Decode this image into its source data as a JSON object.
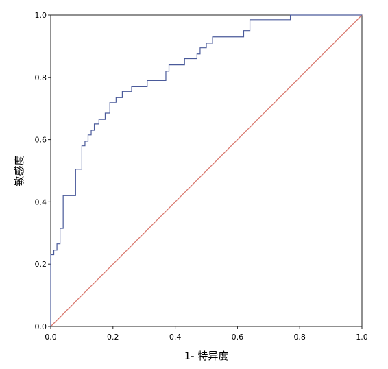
{
  "chart_data": {
    "type": "line",
    "title": "",
    "xlabel": "1- 特异度",
    "ylabel": "敏感度",
    "xlim": [
      0,
      1
    ],
    "ylim": [
      0,
      1
    ],
    "xticks": [
      "0.0",
      "0.2",
      "0.4",
      "0.6",
      "0.8",
      "1.0"
    ],
    "yticks": [
      "0.0",
      "0.2",
      "0.4",
      "0.6",
      "0.8",
      "1.0"
    ],
    "grid": false,
    "colors": {
      "roc": "#4a5a9a",
      "reference": "#d9786e"
    },
    "series": [
      {
        "kind": "step",
        "x": [
          0.0,
          0.0,
          0.01,
          0.01,
          0.02,
          0.02,
          0.03,
          0.03,
          0.04,
          0.04,
          0.08,
          0.08,
          0.1,
          0.1,
          0.11,
          0.11,
          0.12,
          0.12,
          0.13,
          0.13,
          0.14,
          0.14,
          0.155,
          0.155,
          0.175,
          0.175,
          0.19,
          0.19,
          0.21,
          0.21,
          0.23,
          0.23,
          0.26,
          0.26,
          0.31,
          0.31,
          0.37,
          0.37,
          0.38,
          0.38,
          0.43,
          0.43,
          0.47,
          0.47,
          0.48,
          0.48,
          0.5,
          0.5,
          0.52,
          0.52,
          0.62,
          0.62,
          0.64,
          0.64,
          0.77,
          0.77,
          1.0
        ],
        "y": [
          0.0,
          0.23,
          0.23,
          0.245,
          0.245,
          0.265,
          0.265,
          0.315,
          0.315,
          0.42,
          0.42,
          0.505,
          0.505,
          0.58,
          0.58,
          0.595,
          0.595,
          0.615,
          0.615,
          0.63,
          0.63,
          0.65,
          0.65,
          0.665,
          0.665,
          0.685,
          0.685,
          0.72,
          0.72,
          0.735,
          0.735,
          0.755,
          0.755,
          0.77,
          0.77,
          0.79,
          0.79,
          0.82,
          0.82,
          0.84,
          0.84,
          0.86,
          0.86,
          0.875,
          0.875,
          0.895,
          0.895,
          0.91,
          0.91,
          0.93,
          0.93,
          0.95,
          0.95,
          0.985,
          0.985,
          1.0,
          1.0
        ]
      },
      {
        "kind": "reference",
        "x": [
          0,
          1
        ],
        "y": [
          0,
          1
        ]
      }
    ]
  }
}
